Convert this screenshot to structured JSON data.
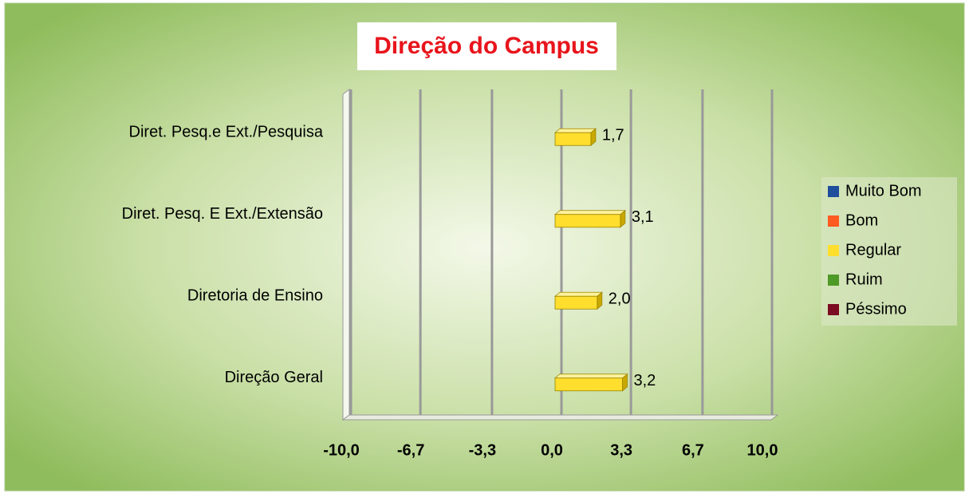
{
  "chart_data": {
    "type": "hbar",
    "title": "Direção do Campus",
    "categories": [
      "Diret. Pesq.e Ext./Pesquisa",
      "Diret. Pesq. E Ext./Extensão",
      "Diretoria de Ensino",
      "Direção Geral"
    ],
    "series": [
      {
        "name": "Muito Bom",
        "color": "#1f4e9c",
        "values": [
          null,
          null,
          null,
          null
        ]
      },
      {
        "name": "Bom",
        "color": "#ff5a1f",
        "values": [
          null,
          null,
          null,
          null
        ]
      },
      {
        "name": "Regular",
        "color": "#ffde2e",
        "values": [
          1.7,
          3.1,
          2.0,
          3.2
        ],
        "value_labels": [
          "1,7",
          "3,1",
          "2,0",
          "3,2"
        ]
      },
      {
        "name": "Ruim",
        "color": "#4e9a26",
        "values": [
          null,
          null,
          null,
          null
        ]
      },
      {
        "name": "Péssimo",
        "color": "#7b0c22",
        "values": [
          null,
          null,
          null,
          null
        ]
      }
    ],
    "xlim": [
      -10,
      10
    ],
    "xticks": [
      {
        "value": -10,
        "label": "-10,0"
      },
      {
        "value": -6.7,
        "label": "-6,7"
      },
      {
        "value": -3.3,
        "label": "-3,3"
      },
      {
        "value": 0,
        "label": "0,0"
      },
      {
        "value": 3.3,
        "label": "3,3"
      },
      {
        "value": 6.7,
        "label": "6,7"
      },
      {
        "value": 10,
        "label": "10,0"
      }
    ],
    "grid": true,
    "legend": "right"
  }
}
